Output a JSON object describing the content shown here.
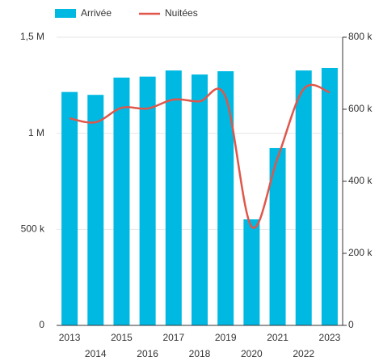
{
  "chart_data": {
    "type": "bar_line",
    "categories": [
      "2013",
      "2014",
      "2015",
      "2016",
      "2017",
      "2018",
      "2019",
      "2020",
      "2021",
      "2022",
      "2023"
    ],
    "series": [
      {
        "name": "Arrivée",
        "color": "#00b9e2",
        "axis": "y",
        "values": [
          1215000,
          1200000,
          1290000,
          1295000,
          1327000,
          1306000,
          1323000,
          552000,
          923000,
          1327000,
          1340000
        ]
      },
      {
        "name": "Nuitées",
        "color": "#e0564a",
        "axis": "y2",
        "values": [
          575000,
          564000,
          604000,
          602000,
          627000,
          622000,
          634000,
          274000,
          465000,
          656000,
          647000
        ]
      }
    ],
    "ylim": [
      0,
      1500000
    ],
    "yticks": [
      0,
      {
        "value": 500000,
        "label": "500 k"
      },
      {
        "value": 1000000,
        "label": "1 M"
      },
      {
        "value": 1500000,
        "label": "1,5 M"
      }
    ],
    "y2lim": [
      0,
      800000
    ],
    "y2ticks": [
      0,
      {
        "value": 200000,
        "label": "200 k"
      },
      {
        "value": 400000,
        "label": "400 k"
      },
      {
        "value": 600000,
        "label": "600 k"
      },
      {
        "value": 800000,
        "label": "800 k"
      }
    ],
    "grid": true,
    "legend": "top"
  }
}
